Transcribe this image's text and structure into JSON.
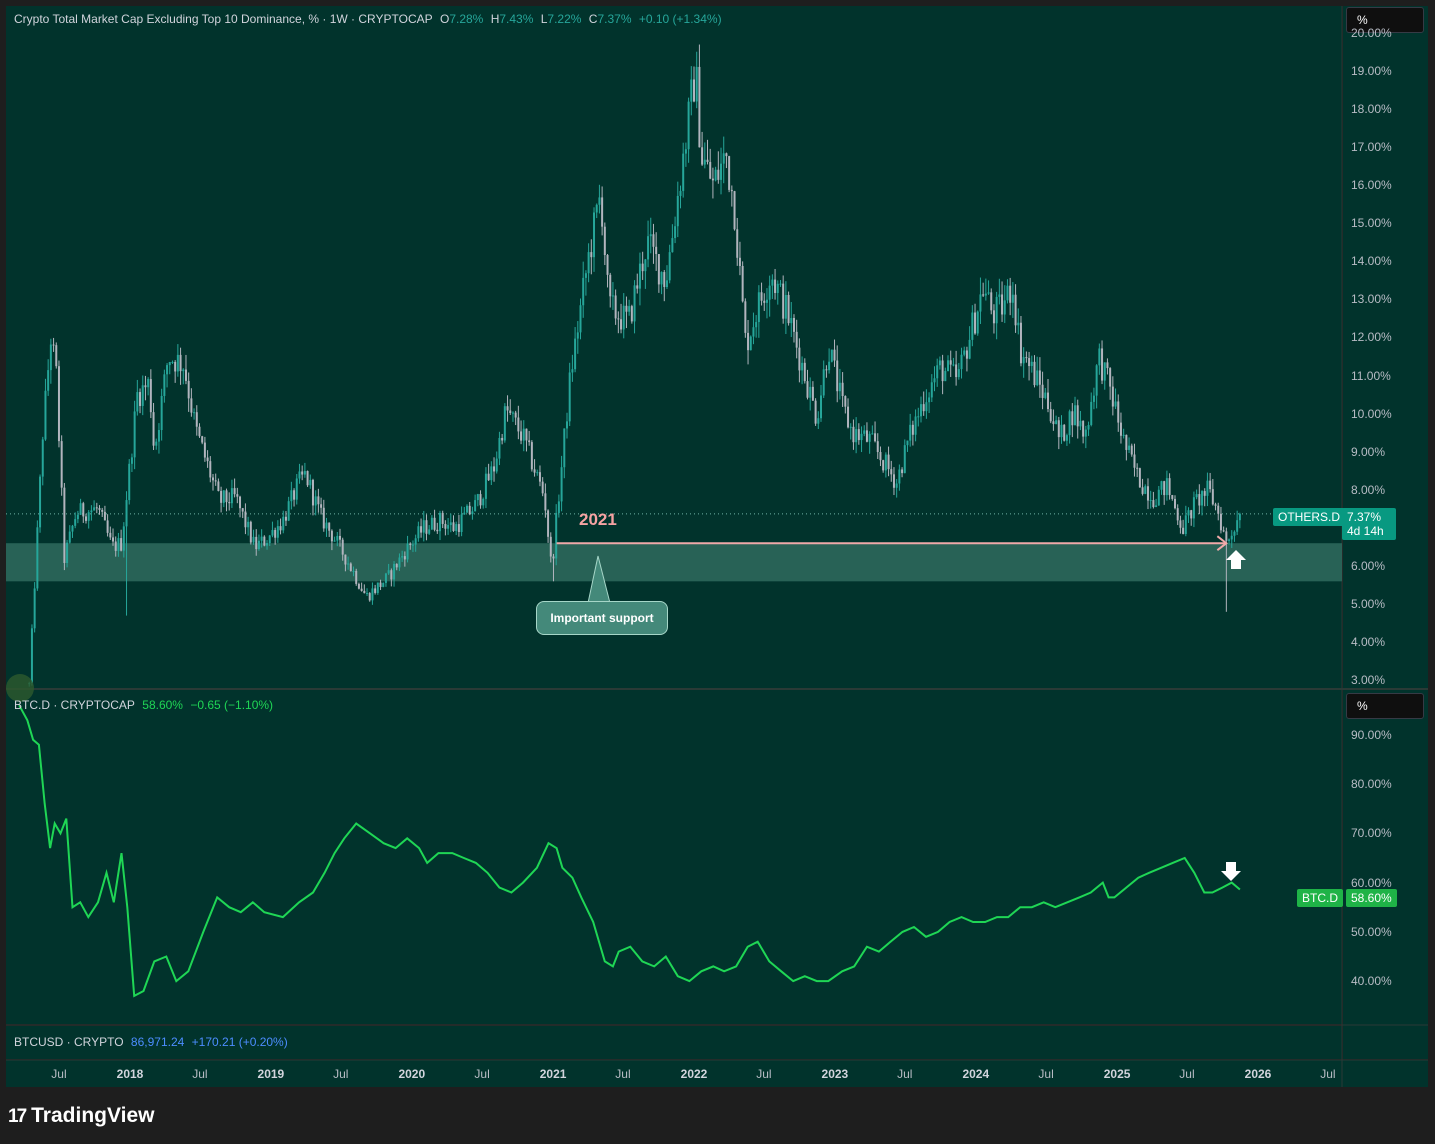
{
  "colors": {
    "background": "#01332c",
    "outer": "#1e1e1e",
    "up_candle": "#26a69a",
    "down_candle": "#b2b5be",
    "btc_line": "#1fd655",
    "support_zone": "#2f6b5e",
    "arrow_2021": "#f0a9a9",
    "others_tag": "#089981",
    "btc_tag": "#1fb347"
  },
  "legend_others": {
    "title": "Crypto Total Market Cap Excluding Top 10 Dominance, % · 1W · CRYPTOCAP",
    "o_label": "O",
    "o_value": "7.28%",
    "h_label": "H",
    "h_value": "7.43%",
    "l_label": "L",
    "l_value": "7.22%",
    "c_label": "C",
    "c_value": "7.37%",
    "change": "+0.10 (+1.34%)"
  },
  "legend_btcd": {
    "title": "BTC.D · CRYPTOCAP",
    "value": "58.60%",
    "change": "−0.65 (−1.10%)"
  },
  "legend_btcusd": {
    "title": "BTCUSD · CRYPTO",
    "value": "86,971.24",
    "change": "+170.21 (+0.20%)"
  },
  "unit_button": "%",
  "unit_button_2": "%",
  "others_tag": {
    "name": "OTHERS.D",
    "value": "7.37%",
    "countdown": "4d 14h"
  },
  "btc_tag": {
    "name": "BTC.D",
    "value": "58.60%"
  },
  "annotations": {
    "year_label": "2021",
    "callout": "Important support"
  },
  "logo": {
    "text": "TradingView"
  },
  "chart_data": [
    {
      "type": "candlestick",
      "title": "Crypto Total Market Cap Excluding Top 10 Dominance, % · 1W · CRYPTOCAP",
      "y_unit": "%",
      "ylim": [
        2.8,
        20.7
      ],
      "y_ticks": [
        "20.00%",
        "19.00%",
        "18.00%",
        "17.00%",
        "16.00%",
        "15.00%",
        "14.00%",
        "13.00%",
        "12.00%",
        "11.00%",
        "10.00%",
        "9.00%",
        "8.00%",
        "7.00%",
        "6.00%",
        "5.00%",
        "4.00%",
        "3.00%"
      ],
      "support_zone": [
        5.6,
        6.6
      ],
      "support_line_2021": 6.6,
      "last_value": 7.37,
      "path_points": [
        [
          "2017-04-15",
          2.9
        ],
        [
          "2017-05-20",
          9.5
        ],
        [
          "2017-06-10",
          12.0
        ],
        [
          "2017-06-24",
          11.0
        ],
        [
          "2017-07-15",
          6.2
        ],
        [
          "2017-08-15",
          7.4
        ],
        [
          "2017-10-10",
          7.5
        ],
        [
          "2017-11-15",
          6.5
        ],
        [
          "2017-12-10",
          6.6
        ],
        [
          "2018-01-20",
          10.5
        ],
        [
          "2018-02-20",
          10.8
        ],
        [
          "2018-03-05",
          9.0
        ],
        [
          "2018-04-10",
          11.5
        ],
        [
          "2018-05-20",
          11.3
        ],
        [
          "2018-06-20",
          9.6
        ],
        [
          "2018-08-20",
          7.7
        ],
        [
          "2018-10-01",
          7.8
        ],
        [
          "2018-11-20",
          6.5
        ],
        [
          "2018-12-20",
          6.7
        ],
        [
          "2019-02-01",
          7.2
        ],
        [
          "2019-03-15",
          8.2
        ],
        [
          "2019-04-01",
          8.4
        ],
        [
          "2019-05-10",
          7.3
        ],
        [
          "2019-06-10",
          6.8
        ],
        [
          "2019-07-15",
          6.2
        ],
        [
          "2019-09-05",
          5.2
        ],
        [
          "2019-11-01",
          5.7
        ],
        [
          "2019-12-15",
          6.4
        ],
        [
          "2020-02-01",
          7.0
        ],
        [
          "2020-03-15",
          7.2
        ],
        [
          "2020-04-20",
          7.0
        ],
        [
          "2020-06-15",
          7.6
        ],
        [
          "2020-08-01",
          8.6
        ],
        [
          "2020-09-01",
          10.1
        ],
        [
          "2020-10-15",
          9.4
        ],
        [
          "2020-12-10",
          7.8
        ],
        [
          "2020-12-28",
          5.9
        ],
        [
          "2021-02-15",
          11.0
        ],
        [
          "2021-04-01",
          14.0
        ],
        [
          "2021-05-05",
          15.8
        ],
        [
          "2021-05-25",
          12.8
        ],
        [
          "2021-07-15",
          12.4
        ],
        [
          "2021-09-01",
          14.5
        ],
        [
          "2021-10-20",
          13.5
        ],
        [
          "2021-12-01",
          16.5
        ],
        [
          "2022-01-05",
          19.0
        ],
        [
          "2022-01-20",
          16.8
        ],
        [
          "2022-02-20",
          16.0
        ],
        [
          "2022-03-25",
          16.8
        ],
        [
          "2022-04-15",
          15.5
        ],
        [
          "2022-05-15",
          11.8
        ],
        [
          "2022-06-15",
          12.8
        ],
        [
          "2022-07-20",
          13.7
        ],
        [
          "2022-09-01",
          12.6
        ],
        [
          "2022-10-10",
          11.2
        ],
        [
          "2022-11-15",
          9.9
        ],
        [
          "2022-12-15",
          11.8
        ],
        [
          "2023-01-20",
          10.2
        ],
        [
          "2023-02-15",
          9.5
        ],
        [
          "2023-04-01",
          9.3
        ],
        [
          "2023-06-10",
          8.2
        ],
        [
          "2023-07-10",
          9.3
        ],
        [
          "2023-08-20",
          10.4
        ],
        [
          "2023-10-01",
          11.2
        ],
        [
          "2023-11-15",
          10.9
        ],
        [
          "2023-12-15",
          12.0
        ],
        [
          "2024-01-20",
          13.3
        ],
        [
          "2024-02-15",
          12.6
        ],
        [
          "2024-03-10",
          12.8
        ],
        [
          "2024-04-05",
          13.4
        ],
        [
          "2024-04-25",
          11.7
        ],
        [
          "2024-06-01",
          11.0
        ],
        [
          "2024-07-10",
          10.2
        ],
        [
          "2024-08-05",
          9.3
        ],
        [
          "2024-09-10",
          10.1
        ],
        [
          "2024-10-10",
          9.4
        ],
        [
          "2024-11-15",
          11.5
        ],
        [
          "2024-12-15",
          10.6
        ],
        [
          "2025-01-20",
          9.2
        ],
        [
          "2025-02-25",
          8.3
        ],
        [
          "2025-04-05",
          7.8
        ],
        [
          "2025-05-10",
          8.1
        ],
        [
          "2025-06-20",
          7.0
        ],
        [
          "2025-07-25",
          7.7
        ],
        [
          "2025-08-25",
          8.0
        ],
        [
          "2025-09-20",
          7.4
        ],
        [
          "2025-10-11",
          6.6
        ],
        [
          "2025-10-25",
          6.9
        ],
        [
          "2025-11-15",
          7.37
        ]
      ]
    },
    {
      "type": "line",
      "title": "BTC.D · CRYPTOCAP",
      "y_unit": "%",
      "ylim": [
        31.3,
        99.1
      ],
      "y_ticks": [
        "90.00%",
        "80.00%",
        "70.00%",
        "60.00%",
        "50.00%",
        "40.00%"
      ],
      "last_value": 58.6,
      "points": [
        [
          "2017-03-20",
          96
        ],
        [
          "2017-04-10",
          93
        ],
        [
          "2017-04-25",
          89
        ],
        [
          "2017-05-10",
          88
        ],
        [
          "2017-05-25",
          76
        ],
        [
          "2017-06-08",
          67
        ],
        [
          "2017-06-20",
          72
        ],
        [
          "2017-07-05",
          70
        ],
        [
          "2017-07-20",
          73
        ],
        [
          "2017-08-05",
          55
        ],
        [
          "2017-08-25",
          56
        ],
        [
          "2017-09-15",
          53
        ],
        [
          "2017-10-10",
          56
        ],
        [
          "2017-11-01",
          62
        ],
        [
          "2017-11-20",
          56
        ],
        [
          "2017-12-10",
          66
        ],
        [
          "2017-12-25",
          55
        ],
        [
          "2018-01-12",
          37
        ],
        [
          "2018-02-05",
          38
        ],
        [
          "2018-03-05",
          44
        ],
        [
          "2018-04-05",
          45
        ],
        [
          "2018-05-01",
          40
        ],
        [
          "2018-06-01",
          42
        ],
        [
          "2018-07-10",
          50
        ],
        [
          "2018-08-15",
          57
        ],
        [
          "2018-09-15",
          55
        ],
        [
          "2018-10-15",
          54
        ],
        [
          "2018-11-15",
          56
        ],
        [
          "2018-12-15",
          54
        ],
        [
          "2019-02-01",
          53
        ],
        [
          "2019-03-15",
          56
        ],
        [
          "2019-04-20",
          58
        ],
        [
          "2019-05-20",
          62
        ],
        [
          "2019-06-15",
          66
        ],
        [
          "2019-07-10",
          69
        ],
        [
          "2019-08-10",
          72
        ],
        [
          "2019-09-15",
          70
        ],
        [
          "2019-10-20",
          68
        ],
        [
          "2019-11-20",
          67
        ],
        [
          "2019-12-20",
          69
        ],
        [
          "2020-01-20",
          67
        ],
        [
          "2020-02-10",
          64
        ],
        [
          "2020-03-10",
          66
        ],
        [
          "2020-04-15",
          66
        ],
        [
          "2020-05-15",
          65
        ],
        [
          "2020-06-15",
          64
        ],
        [
          "2020-07-15",
          62
        ],
        [
          "2020-08-15",
          59
        ],
        [
          "2020-09-15",
          58
        ],
        [
          "2020-10-15",
          60
        ],
        [
          "2020-11-20",
          63
        ],
        [
          "2020-12-20",
          68
        ],
        [
          "2021-01-10",
          67
        ],
        [
          "2021-01-25",
          63
        ],
        [
          "2021-02-20",
          61
        ],
        [
          "2021-03-15",
          57
        ],
        [
          "2021-04-15",
          52
        ],
        [
          "2021-05-15",
          44
        ],
        [
          "2021-06-05",
          43
        ],
        [
          "2021-06-20",
          46
        ],
        [
          "2021-07-20",
          47
        ],
        [
          "2021-08-20",
          44
        ],
        [
          "2021-09-20",
          43
        ],
        [
          "2021-10-20",
          45
        ],
        [
          "2021-11-20",
          41
        ],
        [
          "2021-12-20",
          40
        ],
        [
          "2022-01-20",
          42
        ],
        [
          "2022-02-20",
          43
        ],
        [
          "2022-03-20",
          42
        ],
        [
          "2022-04-20",
          43
        ],
        [
          "2022-05-20",
          47
        ],
        [
          "2022-06-15",
          48
        ],
        [
          "2022-07-15",
          44
        ],
        [
          "2022-08-15",
          42
        ],
        [
          "2022-09-15",
          40
        ],
        [
          "2022-10-15",
          41
        ],
        [
          "2022-11-15",
          40
        ],
        [
          "2022-12-15",
          40
        ],
        [
          "2023-01-20",
          42
        ],
        [
          "2023-02-20",
          43
        ],
        [
          "2023-03-25",
          47
        ],
        [
          "2023-04-25",
          46
        ],
        [
          "2023-05-25",
          48
        ],
        [
          "2023-06-25",
          50
        ],
        [
          "2023-07-25",
          51
        ],
        [
          "2023-08-25",
          49
        ],
        [
          "2023-09-25",
          50
        ],
        [
          "2023-10-25",
          52
        ],
        [
          "2023-11-25",
          53
        ],
        [
          "2023-12-25",
          52
        ],
        [
          "2024-01-25",
          52
        ],
        [
          "2024-02-25",
          53
        ],
        [
          "2024-03-25",
          53
        ],
        [
          "2024-04-25",
          55
        ],
        [
          "2024-05-25",
          55
        ],
        [
          "2024-06-25",
          56
        ],
        [
          "2024-07-25",
          55
        ],
        [
          "2024-08-25",
          56
        ],
        [
          "2024-09-25",
          57
        ],
        [
          "2024-10-25",
          58
        ],
        [
          "2024-11-25",
          60
        ],
        [
          "2024-12-10",
          57
        ],
        [
          "2024-12-25",
          57
        ],
        [
          "2025-01-25",
          59
        ],
        [
          "2025-02-25",
          61
        ],
        [
          "2025-03-25",
          62
        ],
        [
          "2025-04-25",
          63
        ],
        [
          "2025-05-25",
          64
        ],
        [
          "2025-06-25",
          65
        ],
        [
          "2025-07-20",
          62
        ],
        [
          "2025-08-15",
          58
        ],
        [
          "2025-09-05",
          58
        ],
        [
          "2025-10-01",
          59
        ],
        [
          "2025-10-25",
          60
        ],
        [
          "2025-11-15",
          58.6
        ]
      ]
    }
  ],
  "x_axis": {
    "labels": [
      {
        "date": "2017-07-01",
        "text": "Jul",
        "year": false
      },
      {
        "date": "2018-01-01",
        "text": "2018",
        "year": true
      },
      {
        "date": "2018-07-01",
        "text": "Jul",
        "year": false
      },
      {
        "date": "2019-01-01",
        "text": "2019",
        "year": true
      },
      {
        "date": "2019-07-01",
        "text": "Jul",
        "year": false
      },
      {
        "date": "2020-01-01",
        "text": "2020",
        "year": true
      },
      {
        "date": "2020-07-01",
        "text": "Jul",
        "year": false
      },
      {
        "date": "2021-01-01",
        "text": "2021",
        "year": true
      },
      {
        "date": "2021-07-01",
        "text": "Jul",
        "year": false
      },
      {
        "date": "2022-01-01",
        "text": "2022",
        "year": true
      },
      {
        "date": "2022-07-01",
        "text": "Jul",
        "year": false
      },
      {
        "date": "2023-01-01",
        "text": "2023",
        "year": true
      },
      {
        "date": "2023-07-01",
        "text": "Jul",
        "year": false
      },
      {
        "date": "2024-01-01",
        "text": "2024",
        "year": true
      },
      {
        "date": "2024-07-01",
        "text": "Jul",
        "year": false
      },
      {
        "date": "2025-01-01",
        "text": "2025",
        "year": true
      },
      {
        "date": "2025-07-01",
        "text": "Jul",
        "year": false
      },
      {
        "date": "2026-01-01",
        "text": "2026",
        "year": true
      },
      {
        "date": "2026-07-01",
        "text": "Jul",
        "year": false
      }
    ]
  }
}
